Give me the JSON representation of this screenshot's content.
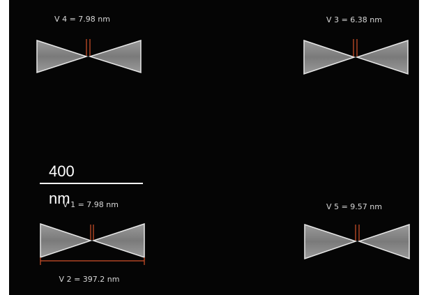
{
  "measurements": [
    {
      "label": "V 4 = 7.98 nm"
    },
    {
      "label": "V 3 = 6.38 nm"
    },
    {
      "label": "V 1 = 7.98 nm"
    },
    {
      "label": "V 5 = 9.57 nm"
    },
    {
      "label": "V 2 = 397.2 nm"
    }
  ],
  "scale_bar": {
    "value": "400",
    "unit": "nm"
  }
}
